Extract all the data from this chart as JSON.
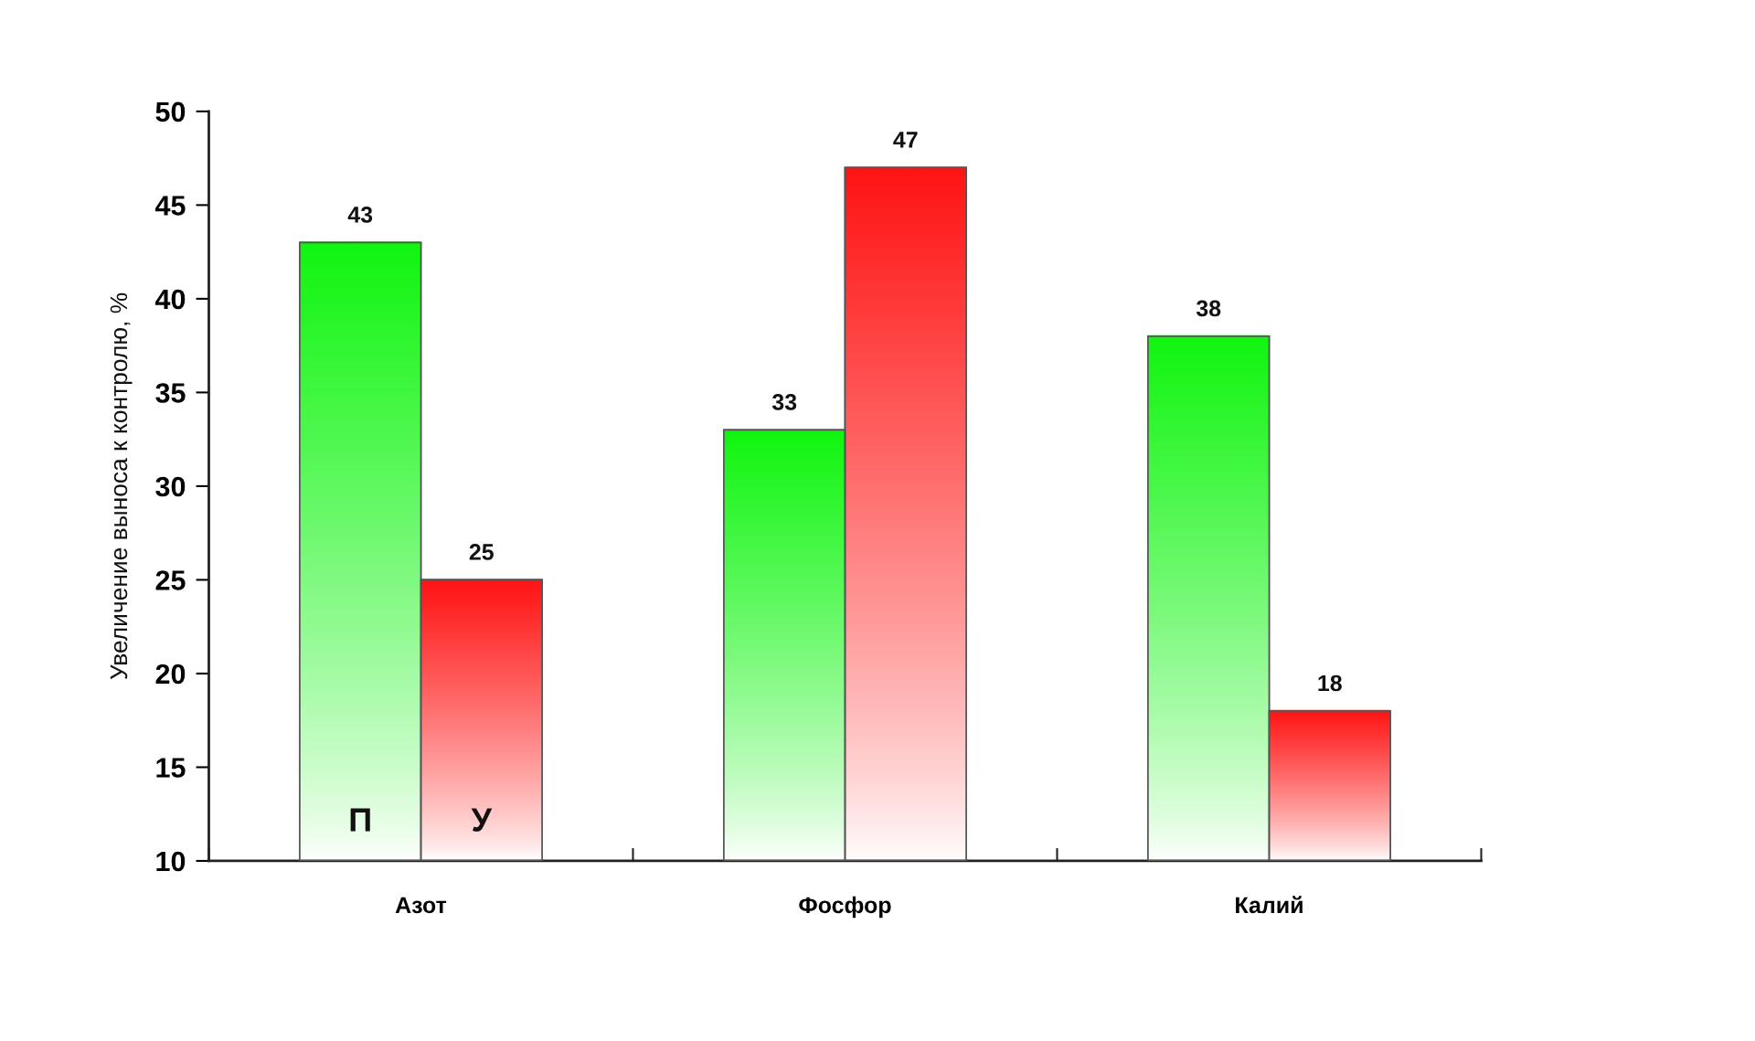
{
  "chart_data": {
    "type": "bar",
    "ylabel": "Увеличение выноса к контролю, %",
    "categories": [
      "Азот",
      "Фосфор",
      "Калий"
    ],
    "series": [
      {
        "name": "П",
        "color": "#11f511",
        "values": [
          43,
          33,
          38
        ]
      },
      {
        "name": "У",
        "color": "#ff1414",
        "values": [
          25,
          47,
          18
        ]
      }
    ],
    "ylim": [
      10,
      50
    ],
    "yticks": [
      10,
      15,
      20,
      25,
      30,
      35,
      40,
      45,
      50
    ],
    "data_labels": true,
    "grid": false,
    "legend": false
  }
}
